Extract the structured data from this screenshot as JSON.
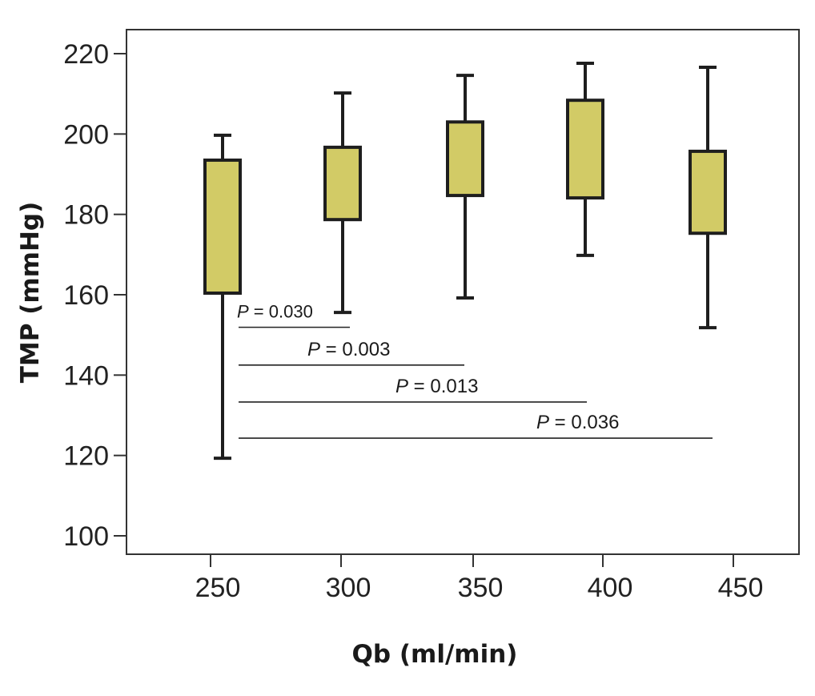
{
  "chart_data": {
    "type": "box",
    "title": "",
    "xlabel": "Qb (ml/min)",
    "ylabel": "TMP (mmHg)",
    "ylim": [
      95,
      225
    ],
    "yticks": [
      100,
      120,
      140,
      160,
      180,
      200,
      220
    ],
    "ytick_labels": [
      "100",
      "120",
      "140",
      "160",
      "180",
      "200",
      "220"
    ],
    "categories": [
      "250",
      "300",
      "350",
      "400",
      "450"
    ],
    "grid": false,
    "box_color": "#d2cb66",
    "line_color": "#1e1e1e",
    "boxes": [
      {
        "category": "250",
        "whisker_low": 119.3,
        "q1": 160.4,
        "q3": 193.5,
        "whisker_high": 199.7
      },
      {
        "category": "300",
        "whisker_low": 155.6,
        "q1": 178.7,
        "q3": 196.7,
        "whisker_high": 210.2
      },
      {
        "category": "350",
        "whisker_low": 159.2,
        "q1": 184.7,
        "q3": 203.0,
        "whisker_high": 214.6
      },
      {
        "category": "400",
        "whisker_low": 169.8,
        "q1": 184.1,
        "q3": 208.4,
        "whisker_high": 217.6
      },
      {
        "category": "450",
        "whisker_low": 151.8,
        "q1": 175.3,
        "q3": 195.7,
        "whisker_high": 216.6
      }
    ],
    "annotations": [
      {
        "from": "250",
        "to": "300",
        "label_italic": "P",
        "label_rest": " = 0.030",
        "y": 151.9
      },
      {
        "from": "250",
        "to": "350",
        "label_italic": "P",
        "label_rest": " = 0.003",
        "y": 142.5
      },
      {
        "from": "250",
        "to": "400",
        "label_italic": "P",
        "label_rest": " = 0.013",
        "y": 133.3
      },
      {
        "from": "250",
        "to": "450",
        "label_italic": "P",
        "label_rest": " = 0.036",
        "y": 124.3
      }
    ]
  }
}
